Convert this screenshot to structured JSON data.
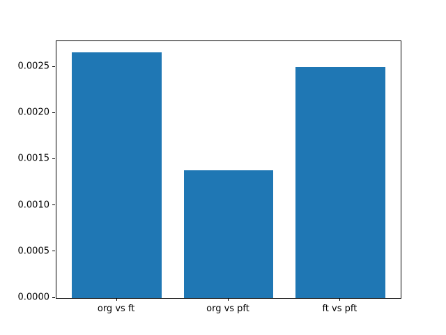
{
  "chart_data": {
    "type": "bar",
    "categories": [
      "org vs ft",
      "org vs pft",
      "ft vs pft"
    ],
    "values": [
      0.00266,
      0.00138,
      0.0025
    ],
    "title": "",
    "xlabel": "",
    "ylabel": "",
    "ylim": [
      0,
      0.00278
    ],
    "xlim": [
      -0.54,
      2.54
    ],
    "yticks": [
      0,
      0.0005,
      0.001,
      0.0015,
      0.002,
      0.0025
    ],
    "ytick_decimals": 4,
    "bar_color": "#1f77b4",
    "bar_width_fraction": 0.8,
    "grid": false,
    "legend": false,
    "background_color": "#ffffff",
    "spine_color": "#000000"
  }
}
